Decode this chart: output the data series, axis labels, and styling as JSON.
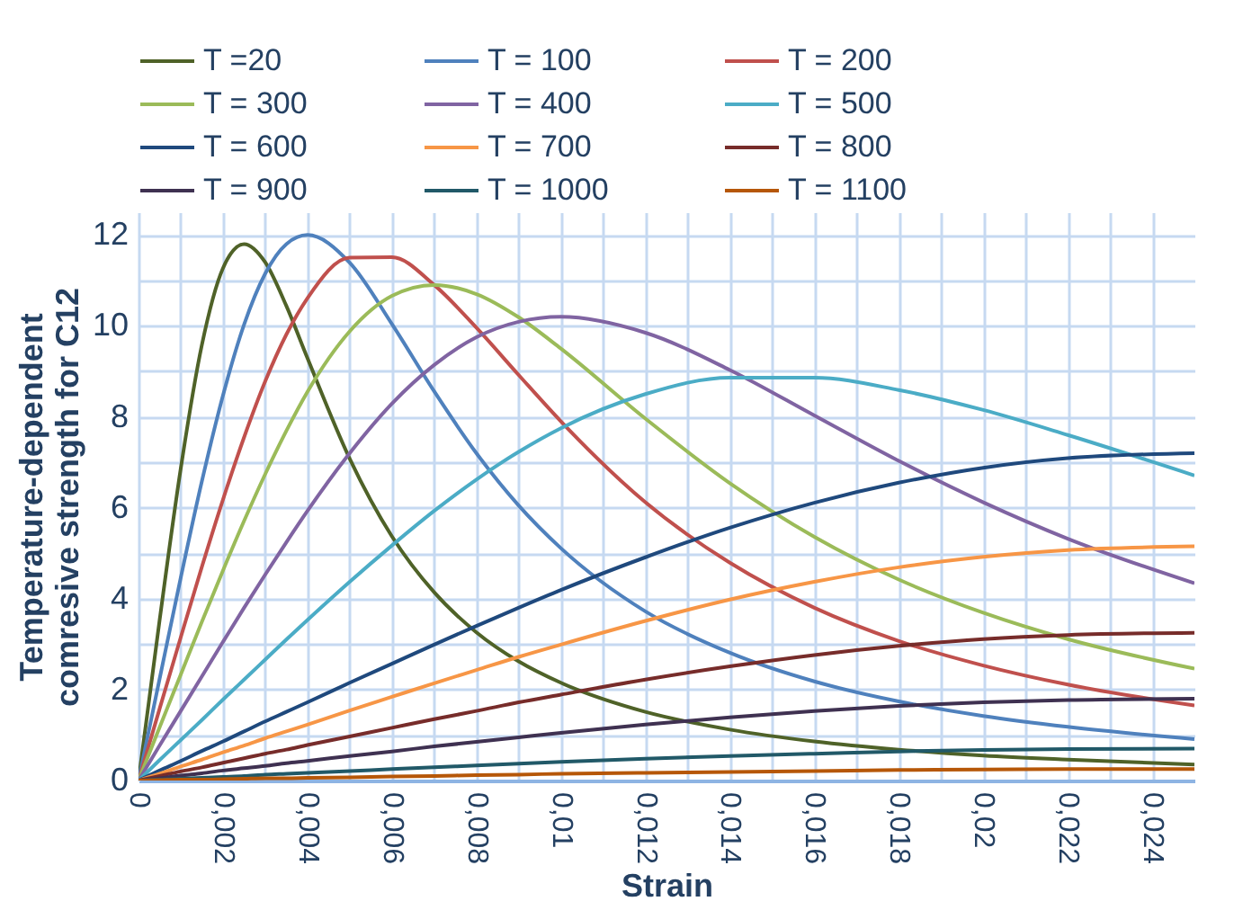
{
  "chart_data": {
    "type": "line",
    "xlabel": "Strain",
    "ylabel": "Temperature-dependent\ncomresive strength for C12",
    "x": [
      0,
      0.0005,
      0.001,
      0.0015,
      0.002,
      0.0025,
      0.003,
      0.0035,
      0.004,
      0.005,
      0.006,
      0.007,
      0.008,
      0.009,
      0.01,
      0.012,
      0.014,
      0.016,
      0.018,
      0.02,
      0.022,
      0.025
    ],
    "series": [
      {
        "name": "T =20",
        "color": "#4f6228",
        "values": [
          0,
          3.53,
          6.86,
          9.58,
          11.27,
          11.8,
          11.4,
          10.44,
          9.29,
          7.08,
          5.37,
          4.14,
          3.26,
          2.62,
          2.15,
          1.51,
          1.12,
          0.86,
          0.68,
          0.55,
          0.46,
          0.35
        ]
      },
      {
        "name": "T = 100",
        "color": "#4f81bd",
        "values": [
          0,
          2.24,
          4.46,
          6.58,
          8.47,
          10.03,
          11.15,
          11.8,
          12.0,
          11.39,
          10.04,
          8.56,
          7.2,
          6.05,
          5.11,
          3.72,
          2.81,
          2.18,
          1.74,
          1.42,
          1.18,
          0.91
        ]
      },
      {
        "name": "T = 200",
        "color": "#c0504d",
        "values": [
          0,
          1.58,
          3.15,
          4.7,
          6.18,
          7.55,
          8.78,
          9.81,
          10.61,
          11.5,
          11.51,
          10.9,
          9.96,
          8.92,
          7.9,
          6.12,
          4.79,
          3.8,
          3.07,
          2.53,
          2.11,
          1.65
        ]
      },
      {
        "name": "T = 300",
        "color": "#9bbb59",
        "values": [
          0,
          1.17,
          2.33,
          3.49,
          4.62,
          5.71,
          6.74,
          7.69,
          8.55,
          9.88,
          10.66,
          10.9,
          10.7,
          10.19,
          9.5,
          7.96,
          6.54,
          5.36,
          4.42,
          3.69,
          3.11,
          2.46
        ]
      },
      {
        "name": "T = 400",
        "color": "#8064a2",
        "values": [
          0,
          0.77,
          1.53,
          2.29,
          3.05,
          3.8,
          4.53,
          5.24,
          5.93,
          7.2,
          8.29,
          9.14,
          9.75,
          10.09,
          10.2,
          9.85,
          9.03,
          8.03,
          7.03,
          6.12,
          5.32,
          4.34
        ]
      },
      {
        "name": "T = 500",
        "color": "#4bacc6",
        "values": [
          0,
          0.45,
          0.89,
          1.33,
          1.78,
          2.22,
          2.66,
          3.1,
          3.53,
          4.37,
          5.17,
          5.93,
          6.62,
          7.23,
          7.75,
          8.5,
          8.86,
          8.86,
          8.59,
          8.15,
          7.6,
          6.71
        ]
      },
      {
        "name": "T = 600",
        "color": "#1f497d",
        "values": [
          0,
          0.22,
          0.43,
          0.65,
          0.86,
          1.08,
          1.3,
          1.51,
          1.72,
          2.15,
          2.57,
          2.99,
          3.4,
          3.8,
          4.19,
          4.91,
          5.56,
          6.11,
          6.55,
          6.88,
          7.09,
          7.2
        ]
      },
      {
        "name": "T = 700",
        "color": "#f79646",
        "values": [
          0,
          0.15,
          0.31,
          0.46,
          0.62,
          0.77,
          0.93,
          1.08,
          1.23,
          1.54,
          1.84,
          2.14,
          2.43,
          2.72,
          2.99,
          3.51,
          3.98,
          4.37,
          4.69,
          4.92,
          5.07,
          5.15
        ]
      },
      {
        "name": "T = 800",
        "color": "#772c2a",
        "values": [
          0,
          0.1,
          0.2,
          0.29,
          0.39,
          0.49,
          0.59,
          0.68,
          0.78,
          0.97,
          1.16,
          1.35,
          1.53,
          1.72,
          1.89,
          2.22,
          2.51,
          2.76,
          2.96,
          3.11,
          3.2,
          3.25
        ]
      },
      {
        "name": "T = 900",
        "color": "#3f3151",
        "values": [
          0,
          0.05,
          0.11,
          0.16,
          0.22,
          0.27,
          0.32,
          0.38,
          0.43,
          0.54,
          0.64,
          0.75,
          0.85,
          0.95,
          1.05,
          1.23,
          1.39,
          1.53,
          1.64,
          1.72,
          1.77,
          1.8
        ]
      },
      {
        "name": "T = 1000",
        "color": "#215968",
        "values": [
          0,
          0.02,
          0.04,
          0.06,
          0.08,
          0.1,
          0.13,
          0.15,
          0.17,
          0.21,
          0.25,
          0.29,
          0.33,
          0.37,
          0.41,
          0.48,
          0.54,
          0.59,
          0.64,
          0.67,
          0.69,
          0.7
        ]
      },
      {
        "name": "T = 1100",
        "color": "#b65708",
        "values": [
          0,
          0.01,
          0.02,
          0.02,
          0.03,
          0.04,
          0.05,
          0.05,
          0.06,
          0.07,
          0.09,
          0.1,
          0.12,
          0.13,
          0.15,
          0.17,
          0.19,
          0.21,
          0.23,
          0.24,
          0.25,
          0.25
        ]
      }
    ],
    "xlim": [
      0,
      0.025
    ],
    "xticks": [
      {
        "value": 0,
        "label": "0"
      },
      {
        "value": 0.001,
        "label": null
      },
      {
        "value": 0.002,
        "label": "0,002"
      },
      {
        "value": 0.003,
        "label": null
      },
      {
        "value": 0.004,
        "label": "0,004"
      },
      {
        "value": 0.005,
        "label": null
      },
      {
        "value": 0.006,
        "label": "0,006"
      },
      {
        "value": 0.007,
        "label": null
      },
      {
        "value": 0.008,
        "label": "0,008"
      },
      {
        "value": 0.009,
        "label": null
      },
      {
        "value": 0.01,
        "label": "0,01"
      },
      {
        "value": 0.011,
        "label": null
      },
      {
        "value": 0.012,
        "label": "0,012"
      },
      {
        "value": 0.013,
        "label": null
      },
      {
        "value": 0.014,
        "label": "0,014"
      },
      {
        "value": 0.015,
        "label": null
      },
      {
        "value": 0.016,
        "label": "0,016"
      },
      {
        "value": 0.017,
        "label": null
      },
      {
        "value": 0.018,
        "label": "0,018"
      },
      {
        "value": 0.019,
        "label": null
      },
      {
        "value": 0.02,
        "label": "0,02"
      },
      {
        "value": 0.021,
        "label": null
      },
      {
        "value": 0.022,
        "label": "0,022"
      },
      {
        "value": 0.023,
        "label": null
      },
      {
        "value": 0.024,
        "label": "0,024"
      }
    ],
    "ylim": [
      0,
      12.5
    ],
    "yticks": [
      0,
      {
        "value": 1,
        "label": null
      },
      2,
      {
        "value": 3,
        "label": null
      },
      4,
      {
        "value": 5,
        "label": null
      },
      6,
      {
        "value": 7,
        "label": null
      },
      8,
      {
        "value": 9,
        "label": null
      },
      10,
      {
        "value": 11,
        "label": null
      },
      12
    ],
    "grid": true,
    "legend": "top",
    "marker": "none",
    "line_style": "solid"
  }
}
